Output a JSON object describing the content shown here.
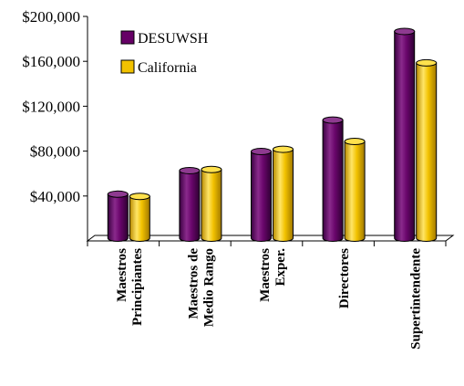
{
  "chart_data": {
    "type": "bar",
    "title": "",
    "xlabel": "",
    "ylabel": "",
    "ylim": [
      0,
      200000
    ],
    "yticks": [
      40000,
      80000,
      120000,
      160000,
      200000
    ],
    "ytick_labels": [
      "$40,000",
      "$80,000",
      "$120,000",
      "$160,000",
      "$200,000"
    ],
    "categories": [
      [
        "Maestros",
        "Principiantes"
      ],
      [
        "Maestros de",
        "Medio Rango"
      ],
      [
        "Maestros",
        "Exper."
      ],
      [
        "Directores"
      ],
      [
        "Supertintendente"
      ]
    ],
    "series": [
      {
        "name": "DESUWSH",
        "color": "#660066",
        "values": [
          40000,
          61000,
          78000,
          106000,
          185000
        ]
      },
      {
        "name": "California",
        "color": "#f2c200",
        "values": [
          38000,
          62000,
          80000,
          87000,
          157000
        ]
      }
    ],
    "legend_position": "top-left",
    "grid": false,
    "style": "3d-cylinder"
  }
}
